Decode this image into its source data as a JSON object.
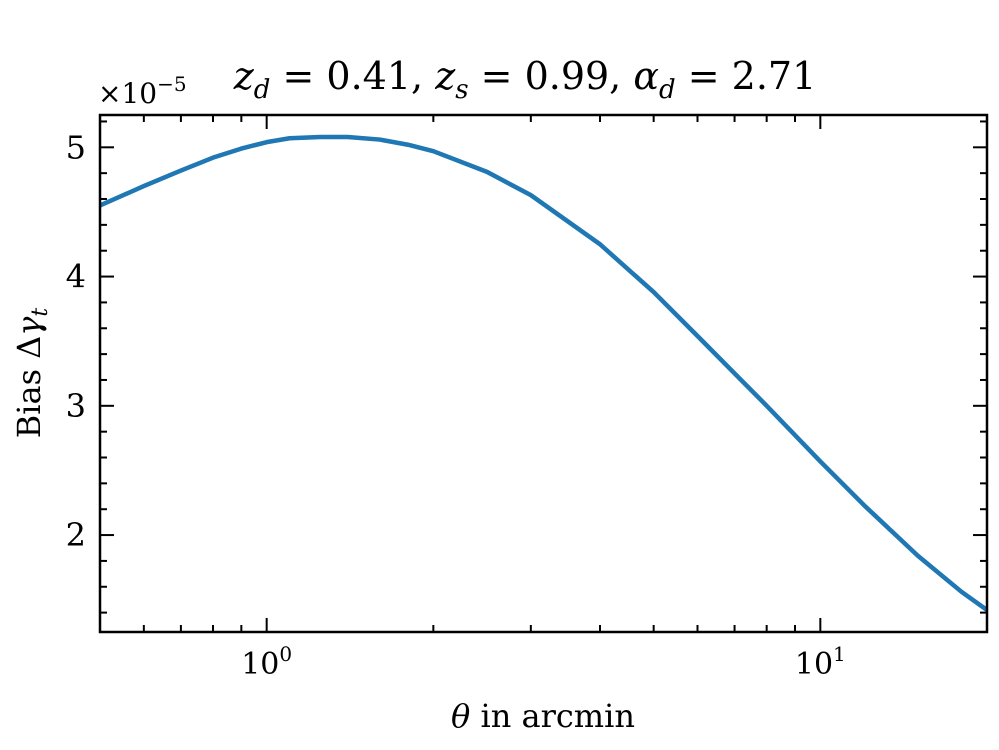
{
  "chart_data": {
    "type": "line",
    "title_parts": {
      "z_sym": "z",
      "d_sub": "d",
      "s_sub": "s",
      "alpha_sym": "α",
      "eq": " = ",
      "sep": ", ",
      "zd_val": "0.41",
      "zs_val": "0.99",
      "alpha_val": "2.71"
    },
    "offset_label": {
      "times": "×10",
      "exp": "−5"
    },
    "xlabel": {
      "sym": "θ",
      "text": " in arcmin"
    },
    "ylabel": {
      "text": "Bias Δ",
      "sym": "γ",
      "sub": "t"
    },
    "x_scale": "log",
    "xlim": [
      0.5,
      20
    ],
    "ylim": [
      1.25,
      5.25
    ],
    "y_ticks": [
      2,
      3,
      4,
      5
    ],
    "y_tick_labels": [
      "2",
      "3",
      "4",
      "5"
    ],
    "x_major_ticks": [
      1,
      10
    ],
    "x_tick_labels": [
      {
        "base": "10",
        "exp": "0"
      },
      {
        "base": "10",
        "exp": "1"
      }
    ],
    "y_scale_factor": "1e-5",
    "grid": false,
    "legend": "none",
    "series": [
      {
        "color": "#1f77b4",
        "x": [
          0.5,
          0.6,
          0.7,
          0.8,
          0.9,
          1.0,
          1.1,
          1.25,
          1.4,
          1.6,
          1.8,
          2.0,
          2.5,
          3.0,
          4.0,
          5.0,
          6.0,
          8.0,
          10.0,
          12.0,
          15.0,
          18.0,
          20.0
        ],
        "y": [
          4.55,
          4.7,
          4.82,
          4.92,
          4.99,
          5.04,
          5.07,
          5.08,
          5.08,
          5.06,
          5.02,
          4.97,
          4.81,
          4.63,
          4.25,
          3.88,
          3.54,
          3.0,
          2.57,
          2.23,
          1.84,
          1.56,
          1.42
        ]
      }
    ]
  }
}
